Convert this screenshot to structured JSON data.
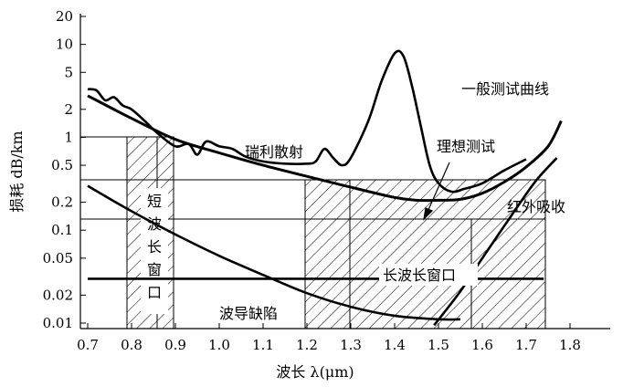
{
  "chart_data": {
    "type": "line",
    "title": "",
    "xlabel": "波长 λ(μm)",
    "ylabel": "损耗 dB/km",
    "x_ticks": [
      "0.7",
      "0.8",
      "0.9",
      "1.0",
      "1.1",
      "1.2",
      "1.3",
      "1.4",
      "1.5",
      "1.6",
      "1.7",
      "1.8"
    ],
    "y_ticks": [
      "20",
      "10",
      "5",
      "2",
      "1",
      "0.5",
      "0.2",
      "0.1",
      "0.05",
      "0.02",
      "0.01"
    ],
    "xlim": [
      0.7,
      1.85
    ],
    "ylim": [
      0.01,
      20
    ],
    "y_scale": "log",
    "series": [
      {
        "name": "一般测试曲线",
        "x": [
          0.7,
          0.72,
          0.74,
          0.76,
          0.78,
          0.8,
          0.83,
          0.86,
          0.9,
          0.93,
          0.95,
          0.97,
          1.0,
          1.03,
          1.06,
          1.1,
          1.15,
          1.2,
          1.22,
          1.24,
          1.26,
          1.28,
          1.3,
          1.34,
          1.37,
          1.4,
          1.42,
          1.44,
          1.46,
          1.48,
          1.5,
          1.53,
          1.56,
          1.6,
          1.65,
          1.7
        ],
        "y": [
          3.3,
          3.2,
          2.5,
          2.7,
          2.2,
          2.0,
          1.5,
          1.1,
          0.8,
          0.85,
          0.65,
          0.9,
          0.8,
          0.75,
          0.62,
          0.55,
          0.52,
          0.52,
          0.55,
          0.75,
          0.6,
          0.5,
          0.6,
          1.5,
          4.0,
          8.0,
          7.5,
          3.5,
          1.3,
          0.5,
          0.32,
          0.26,
          0.28,
          0.32,
          0.44,
          0.58
        ]
      },
      {
        "name": "理想测试",
        "x": [
          0.7,
          0.8,
          0.9,
          1.0,
          1.1,
          1.2,
          1.3,
          1.4,
          1.45,
          1.5,
          1.55,
          1.6,
          1.65,
          1.7,
          1.75,
          1.78
        ],
        "y": [
          2.8,
          1.6,
          0.95,
          0.68,
          0.5,
          0.38,
          0.29,
          0.225,
          0.21,
          0.21,
          0.215,
          0.25,
          0.33,
          0.48,
          0.8,
          1.5
        ]
      },
      {
        "name": "瑞利散射",
        "x": [
          0.7,
          0.8,
          0.9,
          1.0,
          1.1,
          1.2,
          1.3,
          1.4,
          1.5,
          1.55
        ],
        "y": [
          0.3,
          0.16,
          0.09,
          0.053,
          0.033,
          0.021,
          0.015,
          0.012,
          0.011,
          0.011
        ]
      },
      {
        "name": "波导缺陷",
        "x": [
          0.7,
          1.74
        ],
        "y": [
          0.03,
          0.03
        ]
      },
      {
        "name": "红外吸收",
        "x": [
          1.49,
          1.55,
          1.6,
          1.66,
          1.72,
          1.77
        ],
        "y": [
          0.0095,
          0.022,
          0.05,
          0.13,
          0.33,
          0.6
        ]
      }
    ],
    "windows": [
      {
        "label": "短波长窗口",
        "x": [
          0.8,
          0.9
        ]
      },
      {
        "label": "长波长窗口",
        "x": [
          1.2,
          1.75
        ]
      }
    ],
    "annotations": {
      "general": "一般测试曲线",
      "rayleigh": "瑞利散射",
      "ideal": "理想测试",
      "ir": "红外吸收",
      "waveguide": "波导缺陷",
      "short_window": [
        "短",
        "波",
        "长",
        "窗",
        "口"
      ],
      "long_window": "长波长窗口"
    }
  }
}
